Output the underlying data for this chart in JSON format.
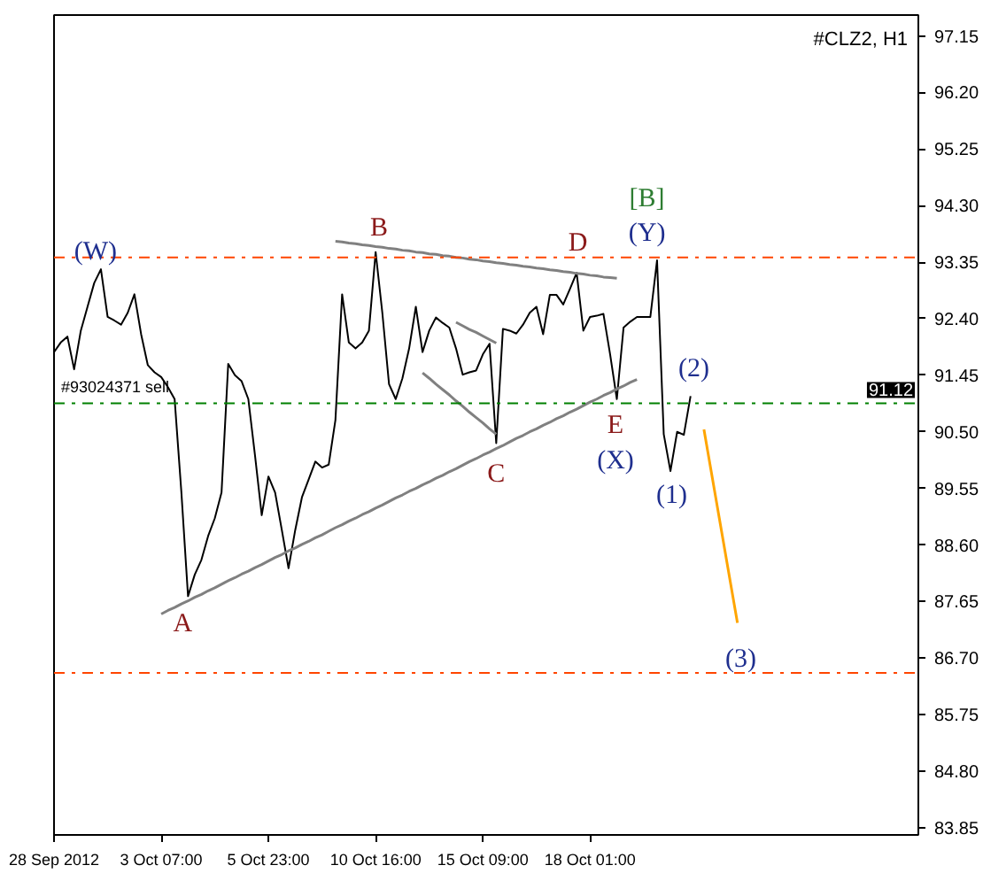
{
  "chart_data": {
    "type": "line",
    "title": "#CLZ2, H1",
    "categories": [
      "28 Sep 2012",
      null,
      null,
      null,
      null,
      null,
      null,
      null,
      null,
      null,
      null,
      null,
      null,
      null,
      null,
      null,
      "3 Oct 07:00",
      null,
      null,
      null,
      null,
      null,
      null,
      null,
      null,
      null,
      null,
      null,
      null,
      null,
      null,
      null,
      "5 Oct 23:00",
      null,
      null,
      null,
      null,
      null,
      null,
      null,
      null,
      null,
      null,
      null,
      null,
      null,
      null,
      null,
      "10 Oct 16:00",
      null,
      null,
      null,
      null,
      null,
      null,
      null,
      null,
      null,
      null,
      null,
      null,
      null,
      null,
      null,
      "15 Oct 09:00",
      null,
      null,
      null,
      null,
      null,
      null,
      null,
      null,
      null,
      null,
      null,
      null,
      null,
      null,
      null,
      "18 Oct 01:00",
      null,
      null,
      null,
      null,
      null,
      null,
      null,
      null,
      null,
      null,
      null,
      null,
      null,
      null,
      null,
      null,
      null,
      null,
      null,
      null,
      null,
      null,
      null,
      null,
      null,
      null,
      null,
      null,
      null,
      null,
      null,
      null,
      null,
      null,
      null,
      null,
      null,
      null,
      null,
      null,
      null,
      null,
      null,
      null,
      null,
      null,
      null,
      null,
      null
    ],
    "series": [
      {
        "color": "#000000",
        "values": [
          91.84,
          92.0,
          92.1,
          91.55,
          92.2,
          92.6,
          93.0,
          93.23,
          92.43,
          92.37,
          92.3,
          92.5,
          92.81,
          92.14,
          91.62,
          91.5,
          91.42,
          91.25,
          91.05,
          89.5,
          87.74,
          88.1,
          88.35,
          88.75,
          89.05,
          89.48,
          91.64,
          91.45,
          91.35,
          91.05,
          90.1,
          89.1,
          89.75,
          89.48,
          88.85,
          88.21,
          88.85,
          89.4,
          89.7,
          90.0,
          89.9,
          89.95,
          90.7,
          92.81,
          92.0,
          91.9,
          92.0,
          92.2,
          93.52,
          92.5,
          91.3,
          91.05,
          91.4,
          91.9,
          92.6,
          91.84,
          92.2,
          92.42,
          92.33,
          92.25,
          91.9,
          91.46,
          91.5,
          91.53,
          91.8,
          91.98,
          90.31,
          92.23,
          92.2,
          92.15,
          92.3,
          92.5,
          92.6,
          92.14,
          92.8,
          92.8,
          92.64,
          92.9,
          93.17,
          92.2,
          92.43,
          92.45,
          92.48,
          91.8,
          91.05,
          92.25,
          92.35,
          92.43,
          92.43,
          92.43,
          93.38,
          90.46,
          89.84,
          90.5,
          90.45,
          91.1,
          null,
          null,
          null,
          null,
          null,
          null,
          null,
          null,
          null,
          null,
          null,
          null,
          null,
          null,
          null,
          null,
          null,
          null,
          null,
          null,
          null,
          null,
          null,
          null,
          null,
          null,
          null,
          null,
          null,
          null,
          null,
          null,
          null,
          null
        ]
      },
      {
        "color": "#808080",
        "values": [
          null,
          null,
          null,
          null,
          null,
          null,
          null,
          null,
          null,
          null,
          null,
          null,
          null,
          null,
          null,
          null,
          null,
          null,
          null,
          null,
          null,
          null,
          null,
          null,
          null,
          null,
          null,
          null,
          null,
          null,
          null,
          null,
          null,
          null,
          null,
          null,
          null,
          null,
          null,
          null,
          null,
          null,
          93.7,
          93.69,
          93.67,
          93.66,
          93.64,
          93.63,
          93.61,
          93.6,
          93.58,
          93.57,
          93.55,
          93.54,
          93.52,
          93.51,
          93.49,
          93.48,
          93.46,
          93.45,
          93.43,
          93.42,
          93.4,
          93.39,
          93.37,
          93.36,
          93.34,
          93.33,
          93.31,
          93.3,
          93.28,
          93.27,
          93.25,
          93.24,
          93.22,
          93.21,
          93.19,
          93.18,
          93.16,
          93.15,
          93.13,
          93.12,
          93.1,
          93.09,
          93.08,
          null,
          null,
          null,
          null,
          null,
          null,
          null,
          null,
          null,
          null,
          null,
          null,
          null,
          null,
          null,
          null,
          null,
          null,
          null,
          null,
          null,
          null,
          null,
          null,
          null,
          null,
          null,
          null,
          null,
          null,
          null,
          null,
          null,
          null,
          null,
          null,
          null,
          null,
          null,
          null,
          null,
          null,
          null,
          null,
          null
        ]
      },
      {
        "color": "#808080",
        "values": [
          null,
          null,
          null,
          null,
          null,
          null,
          null,
          null,
          null,
          null,
          null,
          null,
          null,
          null,
          null,
          null,
          87.44,
          87.5,
          87.55,
          87.61,
          87.66,
          87.72,
          87.77,
          87.83,
          87.88,
          87.94,
          88.0,
          88.05,
          88.11,
          88.16,
          88.22,
          88.27,
          88.33,
          88.39,
          88.44,
          88.5,
          88.55,
          88.61,
          88.66,
          88.72,
          88.77,
          88.83,
          88.89,
          88.94,
          89.0,
          89.05,
          89.11,
          89.16,
          89.22,
          89.27,
          89.33,
          89.39,
          89.44,
          89.5,
          89.55,
          89.61,
          89.66,
          89.72,
          89.77,
          89.83,
          89.88,
          89.94,
          90.0,
          90.05,
          90.11,
          90.16,
          90.22,
          90.27,
          90.33,
          90.39,
          90.44,
          90.5,
          90.55,
          90.61,
          90.66,
          90.72,
          90.77,
          90.83,
          90.88,
          90.94,
          91.0,
          91.05,
          91.11,
          91.16,
          91.22,
          91.27,
          91.33,
          91.38,
          null,
          null,
          null,
          null,
          null,
          null,
          null,
          null,
          null,
          null,
          null,
          null,
          null,
          null,
          null,
          null,
          null,
          null,
          null,
          null,
          null,
          null,
          null,
          null,
          null,
          null,
          null,
          null,
          null,
          null,
          null,
          null,
          null,
          null,
          null,
          null,
          null,
          null,
          null,
          null,
          null,
          null
        ]
      },
      {
        "color": "#808080",
        "values": [
          null,
          null,
          null,
          null,
          null,
          null,
          null,
          null,
          null,
          null,
          null,
          null,
          null,
          null,
          null,
          null,
          null,
          null,
          null,
          null,
          null,
          null,
          null,
          null,
          null,
          null,
          null,
          null,
          null,
          null,
          null,
          null,
          null,
          null,
          null,
          null,
          null,
          null,
          null,
          null,
          null,
          null,
          null,
          null,
          null,
          null,
          null,
          null,
          null,
          null,
          null,
          null,
          null,
          null,
          null,
          91.49,
          91.4,
          91.3,
          91.21,
          91.12,
          91.02,
          90.93,
          90.83,
          90.74,
          90.65,
          90.55,
          90.46,
          null,
          null,
          null,
          null,
          null,
          null,
          null,
          null,
          null,
          null,
          null,
          null,
          null,
          null,
          null,
          null,
          null,
          null,
          null,
          null,
          null,
          null,
          null,
          null,
          null,
          null,
          null,
          null,
          null,
          null,
          null,
          null,
          null,
          null,
          null,
          null,
          null,
          null,
          null,
          null,
          null,
          null,
          null,
          null,
          null,
          null,
          null,
          null,
          null,
          null,
          null,
          null,
          null,
          null,
          null,
          null,
          null,
          null,
          null,
          null,
          null,
          null,
          null
        ]
      },
      {
        "color": "#808080",
        "values": [
          null,
          null,
          null,
          null,
          null,
          null,
          null,
          null,
          null,
          null,
          null,
          null,
          null,
          null,
          null,
          null,
          null,
          null,
          null,
          null,
          null,
          null,
          null,
          null,
          null,
          null,
          null,
          null,
          null,
          null,
          null,
          null,
          null,
          null,
          null,
          null,
          null,
          null,
          null,
          null,
          null,
          null,
          null,
          null,
          null,
          null,
          null,
          null,
          null,
          null,
          null,
          null,
          null,
          null,
          null,
          null,
          null,
          null,
          null,
          null,
          92.34,
          92.28,
          92.22,
          92.17,
          92.11,
          92.05,
          91.99,
          null,
          null,
          null,
          null,
          null,
          null,
          null,
          null,
          null,
          null,
          null,
          null,
          null,
          null,
          null,
          null,
          null,
          null,
          null,
          null,
          null,
          null,
          null,
          null,
          null,
          null,
          null,
          null,
          null,
          null,
          null,
          null,
          null,
          null,
          null,
          null,
          null,
          null,
          null,
          null,
          null,
          null,
          null,
          null,
          null,
          null,
          null,
          null,
          null,
          null,
          null,
          null,
          null,
          null,
          null,
          null,
          null,
          null,
          null,
          null,
          null,
          null,
          null
        ]
      },
      {
        "color": "#ffa500",
        "values": [
          null,
          null,
          null,
          null,
          null,
          null,
          null,
          null,
          null,
          null,
          null,
          null,
          null,
          null,
          null,
          null,
          null,
          null,
          null,
          null,
          null,
          null,
          null,
          null,
          null,
          null,
          null,
          null,
          null,
          null,
          null,
          null,
          null,
          null,
          null,
          null,
          null,
          null,
          null,
          null,
          null,
          null,
          null,
          null,
          null,
          null,
          null,
          null,
          null,
          null,
          null,
          null,
          null,
          null,
          null,
          null,
          null,
          null,
          null,
          null,
          null,
          null,
          null,
          null,
          null,
          null,
          null,
          null,
          null,
          null,
          null,
          null,
          null,
          null,
          null,
          null,
          null,
          null,
          null,
          null,
          null,
          null,
          null,
          null,
          null,
          null,
          null,
          null,
          null,
          null,
          null,
          null,
          null,
          null,
          null,
          null,
          null,
          90.54,
          89.89,
          89.24,
          88.59,
          87.94,
          87.29,
          null,
          null,
          null,
          null,
          null,
          null,
          null,
          null,
          null,
          null,
          null,
          null,
          null,
          null,
          null,
          null,
          null,
          null,
          null,
          null,
          null,
          null,
          null,
          null,
          null,
          null,
          null
        ]
      }
    ],
    "ylim": [
      83.73,
      97.5
    ],
    "yticks": [
      {
        "value": 97.15,
        "label": "97.15"
      },
      {
        "value": 96.2,
        "label": "96.20"
      },
      {
        "value": 95.25,
        "label": "95.25"
      },
      {
        "value": 94.3,
        "label": "94.30"
      },
      {
        "value": 93.35,
        "label": "93.35"
      },
      {
        "value": 92.4,
        "label": "92.40"
      },
      {
        "value": 91.45,
        "label": "91.45"
      },
      {
        "value": 90.5,
        "label": "90.50"
      },
      {
        "value": 89.55,
        "label": "89.55"
      },
      {
        "value": 88.6,
        "label": "88.60"
      },
      {
        "value": 87.65,
        "label": "87.65"
      },
      {
        "value": 86.7,
        "label": "86.70"
      },
      {
        "value": 85.75,
        "label": "85.75"
      },
      {
        "value": 84.8,
        "label": "84.80"
      },
      {
        "value": 83.85,
        "label": "83.85"
      }
    ],
    "ref_lines": [
      {
        "axis": "y",
        "value": 93.43,
        "color": "#ff4500",
        "line_style": "dashdot"
      },
      {
        "axis": "y",
        "value": 90.98,
        "color": "#008000",
        "line_style": "dashdot",
        "label": "#93024371 sell"
      },
      {
        "axis": "y",
        "value": 86.45,
        "color": "#ff4500",
        "line_style": "dashdot"
      }
    ],
    "annotations": [
      "(W)",
      "A",
      "B",
      "C",
      "D",
      "E",
      "(X)",
      "[B]",
      "(Y)",
      "(2)",
      "(1)",
      "(3)",
      "91.12"
    ],
    "grid": false
  }
}
